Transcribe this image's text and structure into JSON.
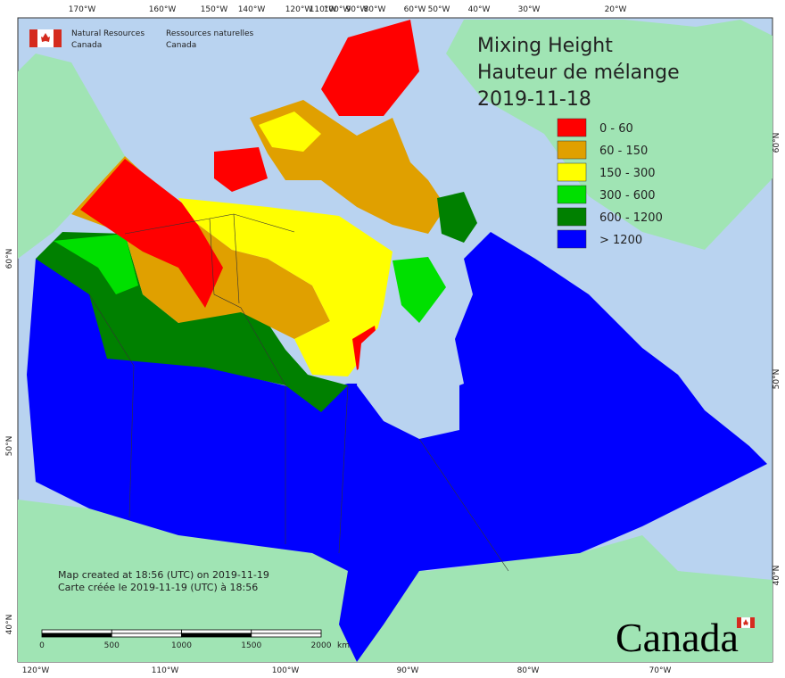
{
  "header": {
    "org_en": [
      "Natural Resources",
      "Canada"
    ],
    "org_fr": [
      "Ressources naturelles",
      "Canada"
    ]
  },
  "title": [
    "Mixing Height",
    "Hauteur de mélange",
    "2019-11-18"
  ],
  "legend": [
    {
      "label": "0 - 60",
      "color": "#ff0000"
    },
    {
      "label": "60 - 150",
      "color": "#e0a000"
    },
    {
      "label": "150 - 300",
      "color": "#ffff00"
    },
    {
      "label": "300 - 600",
      "color": "#00e000"
    },
    {
      "label": "600 - 1200",
      "color": "#008000"
    },
    {
      "label": "> 1200",
      "color": "#0000ff"
    }
  ],
  "graticule": {
    "top": [
      "170°W",
      "160°W",
      "150°W",
      "140°W",
      "120°W",
      "110°W",
      "100°W",
      "90°W",
      "80°W",
      "60°W",
      "50°W",
      "40°W",
      "30°W",
      "20°W"
    ],
    "bottom": [
      "120°W",
      "110°W",
      "100°W",
      "90°W",
      "80°W",
      "70°W"
    ],
    "left": [
      "60°N",
      "50°N",
      "40°N"
    ],
    "right": [
      "60°N",
      "50°N",
      "40°N"
    ]
  },
  "credits": [
    "Map created at 18:56 (UTC) on 2019-11-19",
    "Carte créée le 2019-11-19 (UTC) à 18:56"
  ],
  "scale_bar": {
    "ticks": [
      "0",
      "500",
      "1000",
      "1500",
      "2000"
    ],
    "unit": "km"
  },
  "wordmark": "Canada"
}
